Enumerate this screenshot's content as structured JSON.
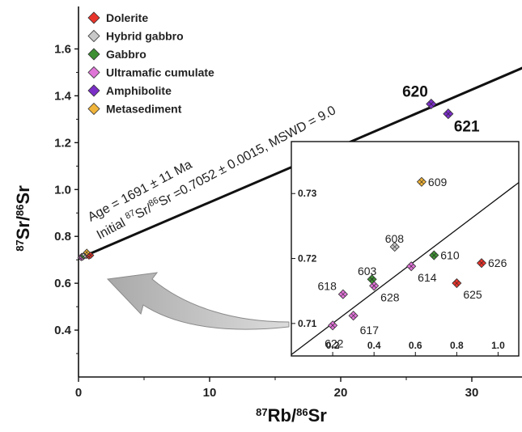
{
  "chart_data": {
    "type": "scatter",
    "xlabel": "87Rb/86Sr",
    "ylabel": "87Sr/86Sr",
    "xlim": [
      0,
      35
    ],
    "ylim": [
      0.2,
      1.65
    ],
    "x_ticks": [
      "0",
      "10",
      "20",
      "30"
    ],
    "y_ticks": [
      "0.4",
      "0.6",
      "0.8",
      "1.0",
      "1.2",
      "1.4",
      "1.6"
    ],
    "legend_position": "top-left",
    "isochron": {
      "line": [
        [
          0,
          0.7052
        ],
        [
          35,
          1.5493
        ]
      ],
      "age_pre": "Age = 1691 ± 11 Ma",
      "init_pre": "Initial ",
      "init_sup1": "87",
      "init_mid": "Sr/",
      "init_sup2": "86",
      "init_post": "Sr =0.7052 ± 0.0015, MSWD = 9.0"
    },
    "series": [
      {
        "name": "Dolerite",
        "color": "#e8352c",
        "points": []
      },
      {
        "name": "Hybrid gabbro",
        "color": "#c8c8c8",
        "points": []
      },
      {
        "name": "Gabbro",
        "color": "#3f8f35",
        "points": []
      },
      {
        "name": "Ultramafic cumulate",
        "color": "#e075d8",
        "points": []
      },
      {
        "name": "Amphibolite",
        "color": "#7b2fc7",
        "points": [
          {
            "x": 26.9,
            "y": 1.365,
            "label": "620"
          },
          {
            "x": 28.2,
            "y": 1.323,
            "label": "621"
          }
        ]
      },
      {
        "name": "Metasediment",
        "color": "#f0b43a",
        "points": []
      }
    ],
    "main_cluster": [
      {
        "x": 0.2,
        "y": 0.7097,
        "color": "#e075d8"
      },
      {
        "x": 0.25,
        "y": 0.7145,
        "color": "#e075d8"
      },
      {
        "x": 0.3,
        "y": 0.7112,
        "color": "#e075d8"
      },
      {
        "x": 0.4,
        "y": 0.7158,
        "color": "#e075d8"
      },
      {
        "x": 0.58,
        "y": 0.7188,
        "color": "#e075d8"
      },
      {
        "x": 0.39,
        "y": 0.7168,
        "color": "#3f8f35"
      },
      {
        "x": 0.69,
        "y": 0.7205,
        "color": "#3f8f35"
      },
      {
        "x": 0.5,
        "y": 0.7218,
        "color": "#c8c8c8"
      },
      {
        "x": 0.8,
        "y": 0.7162,
        "color": "#e8352c"
      },
      {
        "x": 0.92,
        "y": 0.7193,
        "color": "#e8352c"
      },
      {
        "x": 0.63,
        "y": 0.7318,
        "color": "#f0b43a"
      }
    ],
    "inset": {
      "xlim": [
        0,
        1.1
      ],
      "ylim": [
        0.705,
        0.738
      ],
      "x_ticks": [
        "0.2",
        "0.4",
        "0.6",
        "0.8",
        "1.0"
      ],
      "y_ticks": [
        "0.71",
        "0.72",
        "0.73"
      ],
      "line": [
        [
          0,
          0.7052
        ],
        [
          1.1,
          0.7317
        ]
      ],
      "points": [
        {
          "x": 0.2,
          "y": 0.7097,
          "label": "622",
          "color": "#e075d8"
        },
        {
          "x": 0.25,
          "y": 0.7145,
          "label": "618",
          "color": "#e075d8"
        },
        {
          "x": 0.3,
          "y": 0.7112,
          "label": "617",
          "color": "#e075d8"
        },
        {
          "x": 0.4,
          "y": 0.7158,
          "label": "628",
          "color": "#e075d8"
        },
        {
          "x": 0.58,
          "y": 0.7188,
          "label": "614",
          "color": "#e075d8"
        },
        {
          "x": 0.39,
          "y": 0.7168,
          "label": "603",
          "color": "#3f8f35"
        },
        {
          "x": 0.69,
          "y": 0.7205,
          "label": "610",
          "color": "#3f8f35"
        },
        {
          "x": 0.5,
          "y": 0.7218,
          "label": "608",
          "color": "#c8c8c8"
        },
        {
          "x": 0.8,
          "y": 0.7162,
          "label": "625",
          "color": "#e8352c"
        },
        {
          "x": 0.92,
          "y": 0.7193,
          "label": "626",
          "color": "#e8352c"
        },
        {
          "x": 0.63,
          "y": 0.7318,
          "label": "609",
          "color": "#f0b43a"
        }
      ]
    }
  }
}
